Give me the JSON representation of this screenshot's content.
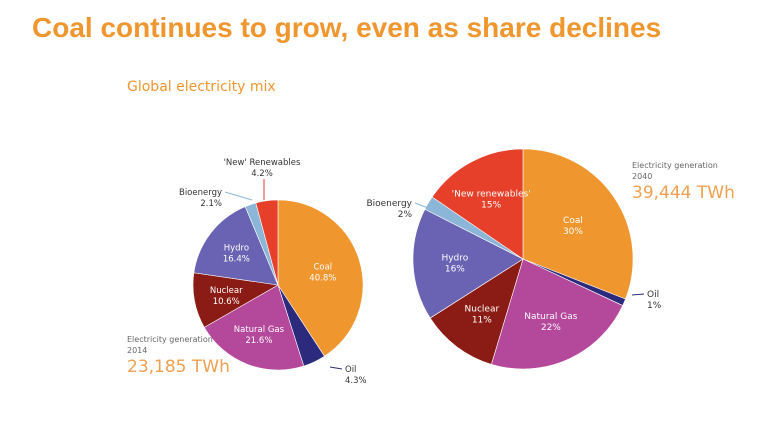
{
  "title": "Coal continues to grow, even as share declines",
  "subtitle": "Global electricity mix",
  "colors": {
    "Coal": "#f0962e",
    "Oil": "#2b2a7c",
    "Natural Gas": "#b4489b",
    "Nuclear": "#8b1c15",
    "Hydro": "#6a62b3",
    "Bioenergy": "#8cb6d8",
    "New Renewables": "#e6402b"
  },
  "chart_data": [
    {
      "type": "pie",
      "title": "Electricity generation 2014",
      "year": "2014",
      "caption": "Electricity generation",
      "total": "23,185 TWh",
      "slices": [
        {
          "name": "Coal",
          "label": "Coal",
          "value": 40.8,
          "text": "40.8%"
        },
        {
          "name": "Oil",
          "label": "Oil",
          "value": 4.3,
          "text": "4.3%"
        },
        {
          "name": "Natural Gas",
          "label": "Natural Gas",
          "value": 21.6,
          "text": "21.6%"
        },
        {
          "name": "Nuclear",
          "label": "Nuclear",
          "value": 10.6,
          "text": "10.6%"
        },
        {
          "name": "Hydro",
          "label": "Hydro",
          "value": 16.4,
          "text": "16.4%"
        },
        {
          "name": "Bioenergy",
          "label": "Bioenergy",
          "value": 2.1,
          "text": "2.1%"
        },
        {
          "name": "New Renewables",
          "label": "'New' Renewables",
          "value": 4.2,
          "text": "4.2%"
        }
      ]
    },
    {
      "type": "pie",
      "title": "Electricity generation 2040",
      "year": "2040",
      "caption": "Electricity generation",
      "total": "39,444 TWh",
      "slices": [
        {
          "name": "Coal",
          "label": "Coal",
          "value": 30,
          "text": "30%"
        },
        {
          "name": "Oil",
          "label": "Oil",
          "value": 1,
          "text": "1%"
        },
        {
          "name": "Natural Gas",
          "label": "Natural Gas",
          "value": 22,
          "text": "22%"
        },
        {
          "name": "Nuclear",
          "label": "Nuclear",
          "value": 11,
          "text": "11%"
        },
        {
          "name": "Hydro",
          "label": "Hydro",
          "value": 16,
          "text": "16%"
        },
        {
          "name": "Bioenergy",
          "label": "Bioenergy",
          "value": 2,
          "text": "2%"
        },
        {
          "name": "New Renewables",
          "label": "'New renewables'",
          "value": 15,
          "text": "15%"
        }
      ]
    }
  ]
}
